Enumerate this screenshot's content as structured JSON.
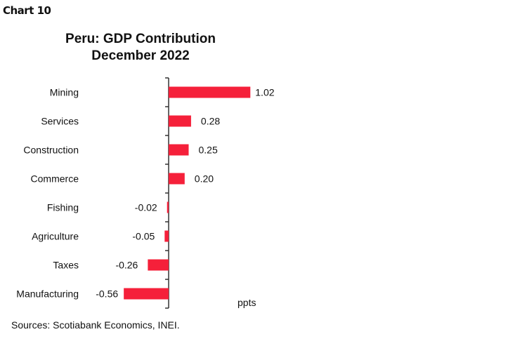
{
  "chart_label": "Chart 10",
  "chart_data": {
    "type": "bar",
    "orientation": "horizontal",
    "title": [
      "Peru: GDP Contribution",
      "December 2022"
    ],
    "categories": [
      "Mining",
      "Services",
      "Construction",
      "Commerce",
      "Fishing",
      "Agriculture",
      "Taxes",
      "Manufacturing"
    ],
    "values": [
      1.02,
      0.28,
      0.25,
      0.2,
      -0.02,
      -0.05,
      -0.26,
      -0.56
    ],
    "data_labels": [
      "1.02",
      "0.28",
      "0.25",
      "0.20",
      "-0.02",
      "-0.05",
      "-0.26",
      "-0.56"
    ],
    "unit_label": "ppts",
    "bar_color": "#f5203a",
    "grid": false,
    "legend": "none"
  },
  "source": "Sources: Scotiabank Economics, INEI."
}
